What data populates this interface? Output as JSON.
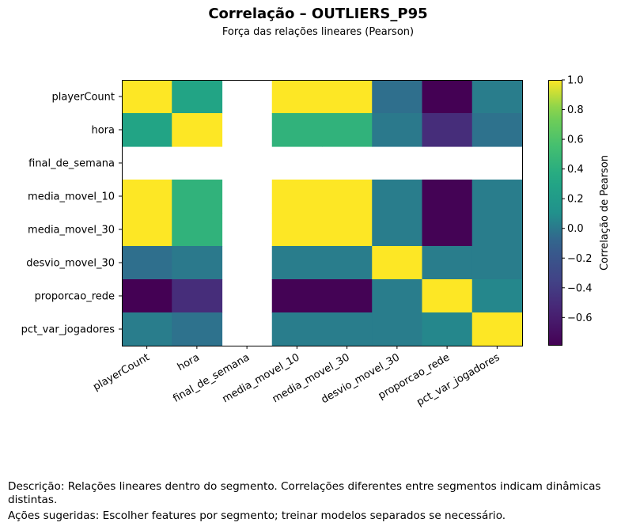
{
  "chart_data": {
    "type": "heatmap",
    "title": "Correlação – OUTLIERS_P95",
    "subtitle": "Força das relações lineares (Pearson)",
    "row_labels": [
      "playerCount",
      "hora",
      "final_de_semana",
      "media_movel_10",
      "media_movel_30",
      "desvio_movel_30",
      "proporcao_rede",
      "pct_var_jogadores"
    ],
    "col_labels": [
      "playerCount",
      "hora",
      "final_de_semana",
      "media_movel_10",
      "media_movel_30",
      "desvio_movel_30",
      "proporcao_rede",
      "pct_var_jogadores"
    ],
    "matrix": [
      [
        1.0,
        0.3,
        null,
        1.0,
        1.0,
        -0.04,
        -0.79,
        0.02
      ],
      [
        0.3,
        1.0,
        null,
        0.43,
        0.43,
        0.0,
        -0.5,
        -0.03
      ],
      [
        null,
        null,
        null,
        null,
        null,
        null,
        null,
        null
      ],
      [
        1.0,
        0.43,
        null,
        1.0,
        1.0,
        0.02,
        -0.78,
        0.02
      ],
      [
        1.0,
        0.43,
        null,
        1.0,
        1.0,
        0.02,
        -0.78,
        0.02
      ],
      [
        -0.04,
        0.0,
        null,
        0.02,
        0.02,
        1.0,
        0.02,
        0.02
      ],
      [
        -0.79,
        -0.5,
        null,
        -0.78,
        -0.78,
        0.02,
        1.0,
        0.06
      ],
      [
        0.02,
        -0.03,
        null,
        0.02,
        0.02,
        0.02,
        0.06,
        1.0
      ]
    ],
    "colormap": "viridis",
    "vmin": -0.79,
    "vmax": 1.0,
    "colorbar": {
      "label": "Correlação de Pearson",
      "ticks": [
        1.0,
        0.8,
        0.6,
        0.4,
        0.2,
        0.0,
        -0.2,
        -0.4,
        -0.6
      ],
      "tick_labels": [
        "1.0",
        "0.8",
        "0.6",
        "0.4",
        "0.2",
        "0.0",
        "−0.2",
        "−0.4",
        "−0.6"
      ]
    },
    "grid": false
  },
  "footer": {
    "description": "Descrição: Relações lineares dentro do segmento. Correlações diferentes entre segmentos indicam dinâmicas distintas.",
    "actions": "Ações sugeridas: Escolher features por segmento; treinar modelos separados se necessário."
  }
}
